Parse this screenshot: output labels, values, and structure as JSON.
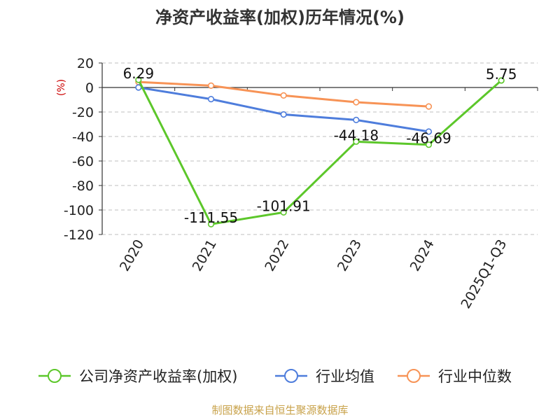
{
  "chart_data": {
    "type": "line",
    "title": "净资产收益率(加权)历年情况(%)",
    "ylabel": "(%)",
    "xlabel": "",
    "categories": [
      "2020",
      "2021",
      "2022",
      "2023",
      "2024",
      "2025Q1-Q3"
    ],
    "ylim": [
      -120,
      20
    ],
    "yticks": [
      "20",
      "0",
      "-20",
      "-40",
      "-60",
      "-80",
      "-100",
      "-120"
    ],
    "grid": true,
    "legend_position": "bottom",
    "series": [
      {
        "name": "公司净资产收益率(加权)",
        "color": "#5cc72a",
        "values": [
          6.29,
          -111.55,
          -101.91,
          -44.18,
          -46.69,
          5.75
        ],
        "labels": [
          "6.29",
          "-111.55",
          "-101.91",
          "-44.18",
          "-46.69",
          "5.75"
        ]
      },
      {
        "name": "行业均值",
        "color": "#4e7ddc",
        "values": [
          0,
          -9.5,
          -22,
          -26.5,
          -36,
          null
        ],
        "labels": []
      },
      {
        "name": "行业中位数",
        "color": "#f79356",
        "values": [
          4.5,
          1.5,
          -6.5,
          -12,
          -15.5,
          null
        ],
        "labels": []
      }
    ]
  },
  "source": "制图数据来自恒生聚源数据库",
  "colors": {
    "ylabel": "#cc0000",
    "source": "#c8a24a"
  }
}
